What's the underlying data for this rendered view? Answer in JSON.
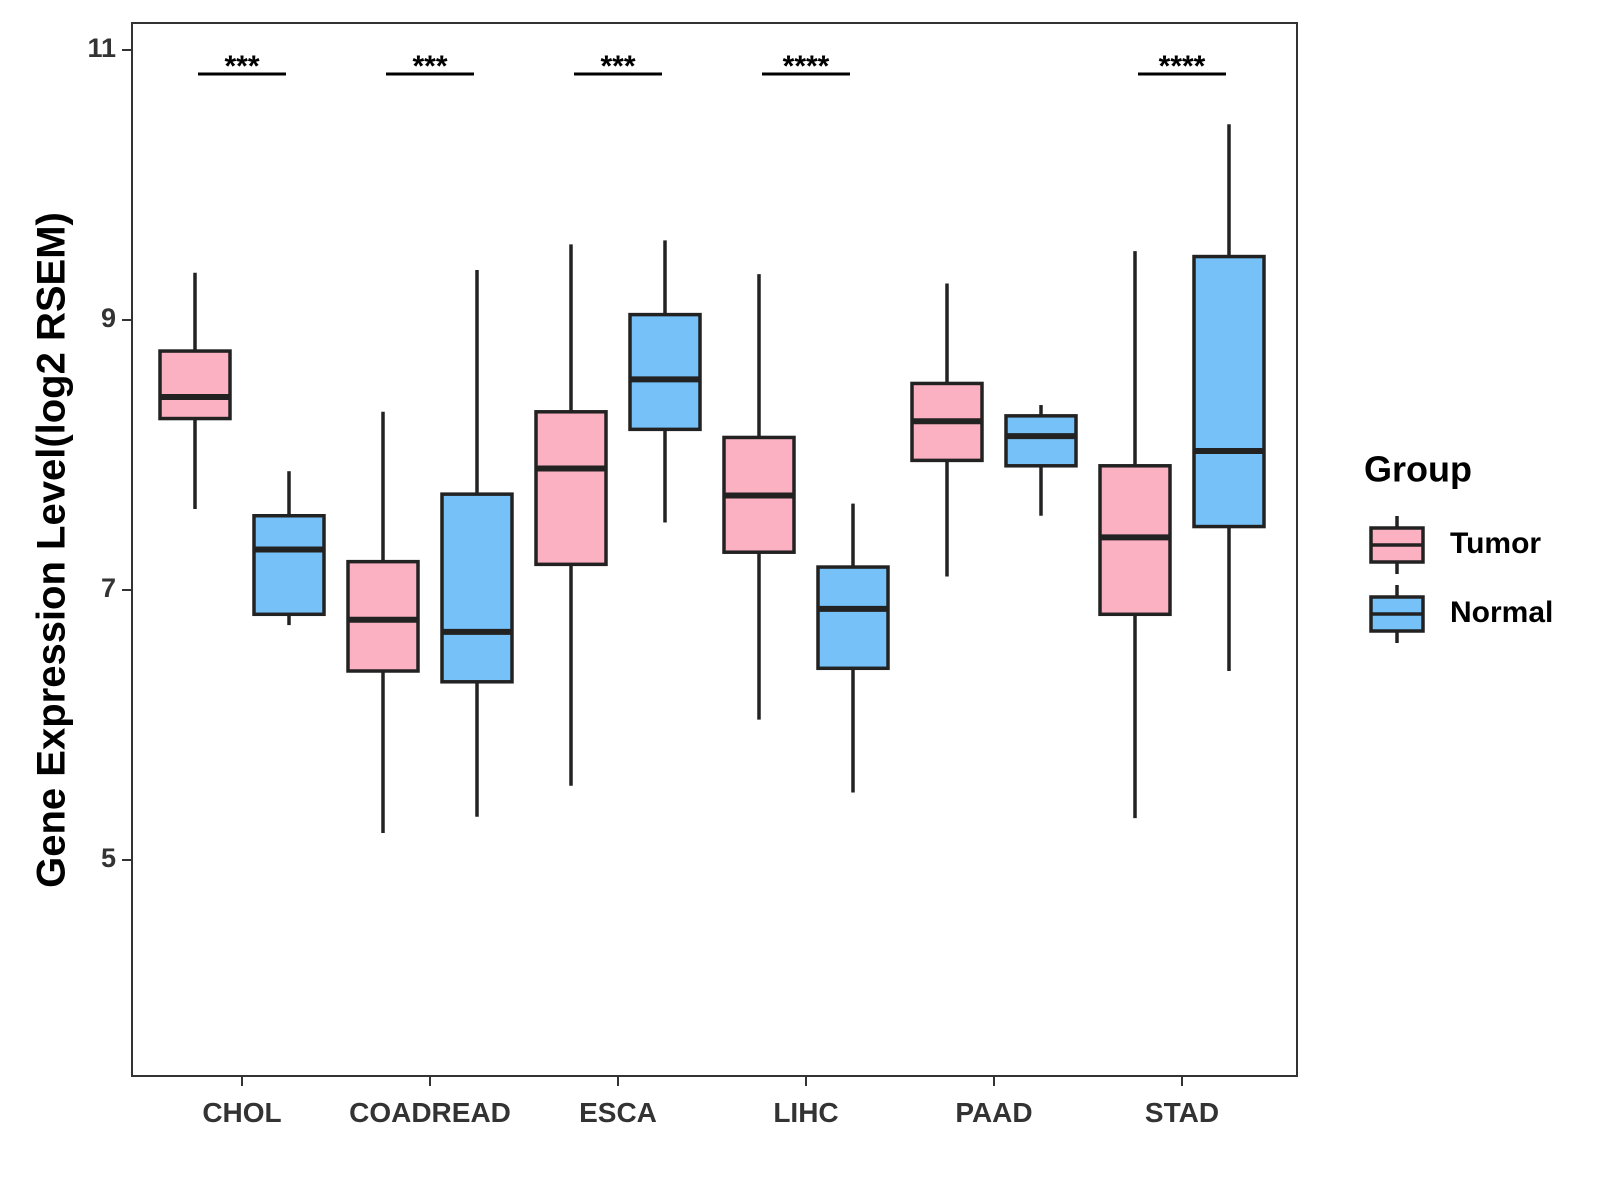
{
  "chart_data": {
    "type": "boxplot",
    "ylabel": "Gene Expression Level(log2 RSEM)",
    "ylim": [
      3.4,
      11.2
    ],
    "yticks": [
      5,
      7,
      9,
      11
    ],
    "categories": [
      "CHOL",
      "COADREAD",
      "ESCA",
      "LIHC",
      "PAAD",
      "STAD"
    ],
    "series": [
      {
        "name": "Tumor",
        "color": "#FBB1C2",
        "boxes": [
          {
            "min": 7.6,
            "q1": 8.27,
            "median": 8.43,
            "q3": 8.77,
            "max": 9.35
          },
          {
            "min": 5.2,
            "q1": 6.4,
            "median": 6.78,
            "q3": 7.21,
            "max": 8.32
          },
          {
            "min": 5.55,
            "q1": 7.19,
            "median": 7.9,
            "q3": 8.32,
            "max": 9.56
          },
          {
            "min": 6.04,
            "q1": 7.28,
            "median": 7.7,
            "q3": 8.13,
            "max": 9.34
          },
          {
            "min": 7.1,
            "q1": 7.96,
            "median": 8.25,
            "q3": 8.53,
            "max": 9.27
          },
          {
            "min": 5.31,
            "q1": 6.82,
            "median": 7.39,
            "q3": 7.92,
            "max": 9.51
          }
        ]
      },
      {
        "name": "Normal",
        "color": "#76C1F7",
        "boxes": [
          {
            "min": 6.74,
            "q1": 6.82,
            "median": 7.3,
            "q3": 7.55,
            "max": 7.88
          },
          {
            "min": 5.32,
            "q1": 6.32,
            "median": 6.69,
            "q3": 7.71,
            "max": 9.37
          },
          {
            "min": 7.5,
            "q1": 8.19,
            "median": 8.56,
            "q3": 9.04,
            "max": 9.59
          },
          {
            "min": 5.5,
            "q1": 6.42,
            "median": 6.86,
            "q3": 7.17,
            "max": 7.64
          },
          {
            "min": 7.55,
            "q1": 7.92,
            "median": 8.14,
            "q3": 8.29,
            "max": 8.37
          },
          {
            "min": 6.4,
            "q1": 7.47,
            "median": 8.03,
            "q3": 9.47,
            "max": 10.45
          }
        ]
      }
    ],
    "significance": [
      "***",
      "***",
      "***",
      "****",
      "",
      "****"
    ],
    "legend": {
      "title": "Group",
      "position": "right"
    },
    "grid": false
  }
}
